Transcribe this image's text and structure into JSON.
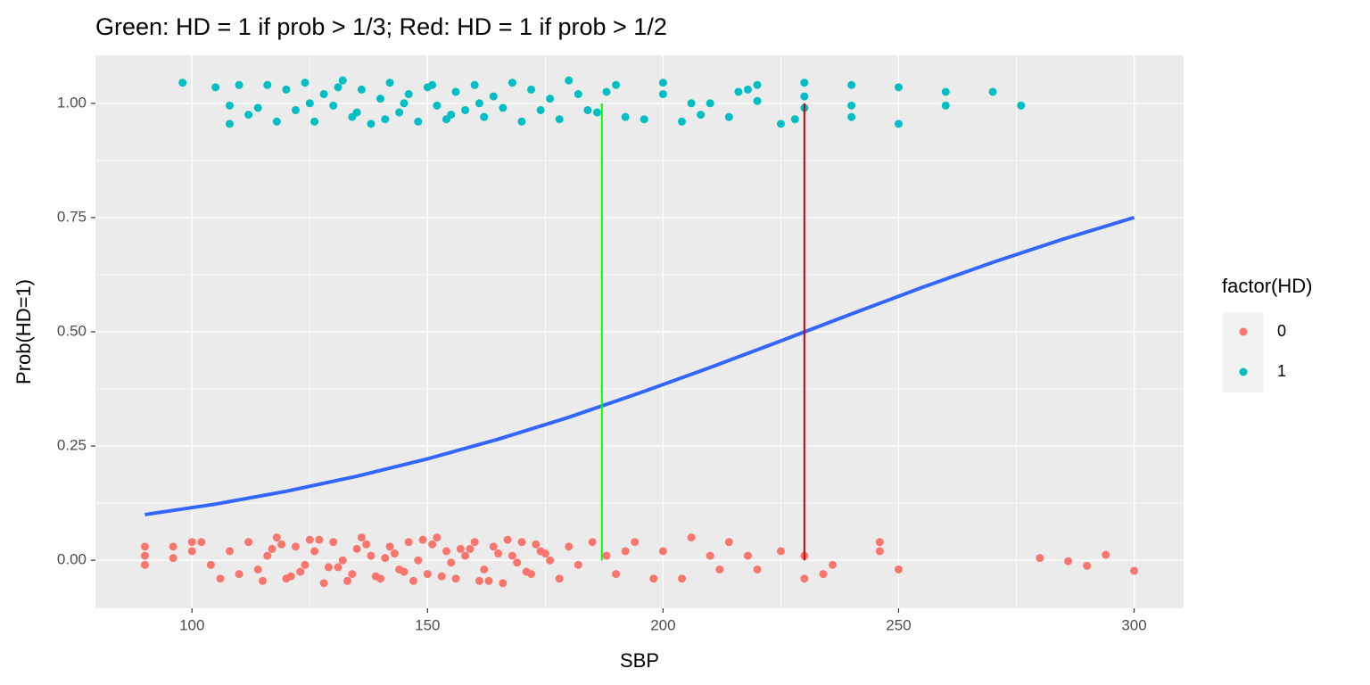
{
  "chart_data": {
    "type": "scatter",
    "title": "Green: HD = 1 if prob > 1/3; Red: HD = 1 if prob > 1/2",
    "x_label": "SBP",
    "y_label": "Prob(HD=1)",
    "xlim": [
      79.5,
      310.5
    ],
    "ylim": [
      -0.105,
      1.105
    ],
    "xticks": [
      100,
      150,
      200,
      250,
      300
    ],
    "yticks": [
      {
        "value": 0,
        "label": "0.00"
      },
      {
        "value": 0.25,
        "label": "0.25"
      },
      {
        "value": 0.5,
        "label": "0.50"
      },
      {
        "value": 0.75,
        "label": "0.75"
      },
      {
        "value": 1,
        "label": "1.00"
      }
    ],
    "grid": true,
    "legend_title": "factor(HD)",
    "series": [
      {
        "name": "0",
        "color": "#F8766D",
        "x": [
          90,
          90,
          90,
          96,
          96,
          100,
          100,
          102,
          104,
          106,
          108,
          110,
          112,
          114,
          116,
          118,
          120,
          122,
          124,
          126,
          128,
          130,
          132,
          134,
          136,
          138,
          140,
          142,
          144,
          146,
          148,
          150,
          152,
          154,
          156,
          158,
          160,
          162,
          164,
          166,
          168,
          170,
          172,
          174,
          176,
          178,
          180,
          182,
          185,
          188,
          190,
          192,
          194,
          198,
          200,
          204,
          206,
          210,
          212,
          214,
          218,
          220,
          225,
          230,
          230,
          234,
          236,
          246,
          246,
          250,
          280,
          286,
          290,
          294,
          300,
          115,
          119,
          123,
          127,
          131,
          135,
          139,
          143,
          147,
          151,
          155,
          159,
          163,
          167,
          171,
          175,
          117,
          121,
          125,
          129,
          133,
          137,
          141,
          145,
          149,
          153,
          157,
          161,
          165,
          169,
          173
        ],
        "y": [
          0.03,
          0.01,
          -0.01,
          0.03,
          0.005,
          0.04,
          0.02,
          0.04,
          -0.01,
          -0.04,
          0.02,
          -0.03,
          0.04,
          -0.02,
          0.01,
          0.05,
          -0.04,
          0.03,
          -0.01,
          0.02,
          -0.05,
          0.04,
          0.0,
          -0.03,
          0.05,
          0.01,
          -0.04,
          0.03,
          -0.02,
          0.04,
          0.0,
          -0.03,
          0.05,
          0.02,
          -0.04,
          0.01,
          0.04,
          -0.02,
          0.03,
          -0.05,
          0.01,
          0.04,
          -0.03,
          0.02,
          0.0,
          -0.04,
          0.03,
          -0.01,
          0.04,
          0.01,
          -0.03,
          0.02,
          0.04,
          -0.04,
          0.02,
          -0.04,
          0.05,
          0.01,
          -0.02,
          0.04,
          0.01,
          -0.02,
          0.02,
          0.01,
          -0.04,
          -0.03,
          -0.01,
          0.04,
          0.02,
          -0.02,
          0.005,
          -0.002,
          -0.012,
          0.012,
          -0.023,
          -0.045,
          0.035,
          -0.025,
          0.045,
          -0.015,
          0.025,
          -0.035,
          0.015,
          -0.045,
          0.035,
          -0.005,
          0.025,
          -0.045,
          0.045,
          -0.025,
          0.015,
          0.025,
          -0.035,
          0.045,
          -0.015,
          -0.045,
          0.035,
          0.005,
          -0.025,
          0.045,
          -0.035,
          0.025,
          -0.045,
          0.015,
          -0.005,
          0.035
        ]
      },
      {
        "name": "1",
        "color": "#00BFC4",
        "x": [
          98,
          105,
          108,
          108,
          110,
          112,
          114,
          116,
          118,
          120,
          122,
          124,
          126,
          128,
          130,
          132,
          134,
          136,
          138,
          140,
          142,
          144,
          146,
          148,
          150,
          152,
          154,
          156,
          158,
          160,
          162,
          164,
          166,
          168,
          170,
          172,
          174,
          176,
          178,
          180,
          182,
          184,
          186,
          188,
          190,
          192,
          196,
          200,
          200,
          204,
          206,
          208,
          210,
          214,
          216,
          218,
          220,
          220,
          225,
          228,
          230,
          230,
          230,
          240,
          240,
          240,
          250,
          250,
          260,
          260,
          270,
          276,
          125,
          135,
          145,
          155,
          131,
          141,
          151,
          161
        ],
        "y": [
          1.045,
          1.035,
          0.995,
          0.955,
          1.04,
          0.975,
          0.99,
          1.04,
          0.96,
          1.03,
          0.985,
          1.045,
          0.96,
          1.02,
          0.995,
          1.05,
          0.97,
          1.03,
          0.955,
          1.01,
          1.045,
          0.98,
          1.02,
          0.96,
          1.035,
          0.995,
          0.965,
          1.025,
          0.985,
          1.04,
          0.97,
          1.015,
          0.99,
          1.045,
          0.96,
          1.03,
          0.985,
          1.01,
          0.965,
          1.05,
          1.02,
          0.985,
          0.98,
          1.025,
          1.04,
          0.97,
          0.965,
          1.045,
          1.02,
          0.96,
          1.0,
          0.975,
          1.0,
          0.97,
          1.025,
          1.03,
          1.04,
          1.005,
          0.955,
          0.965,
          1.045,
          1.015,
          0.99,
          1.04,
          0.995,
          0.97,
          1.035,
          0.955,
          1.025,
          0.995,
          1.025,
          0.995,
          1.0,
          0.98,
          1.0,
          0.975,
          1.035,
          0.965,
          1.04,
          1.0
        ]
      }
    ],
    "curve": {
      "color": "#3366FF",
      "x": [
        90,
        105,
        120,
        135,
        150,
        165,
        180,
        195,
        210,
        225,
        240,
        255,
        270,
        285,
        300
      ],
      "y": [
        0.1,
        0.123,
        0.151,
        0.184,
        0.222,
        0.265,
        0.313,
        0.366,
        0.422,
        0.48,
        0.539,
        0.597,
        0.652,
        0.703,
        0.75
      ]
    },
    "vlines": [
      {
        "color": "#00FF00",
        "x": 187,
        "ymin": 0,
        "ymax": 1
      },
      {
        "color": "#CD0000",
        "x": 230,
        "ymin": 0,
        "ymax": 1
      }
    ]
  }
}
